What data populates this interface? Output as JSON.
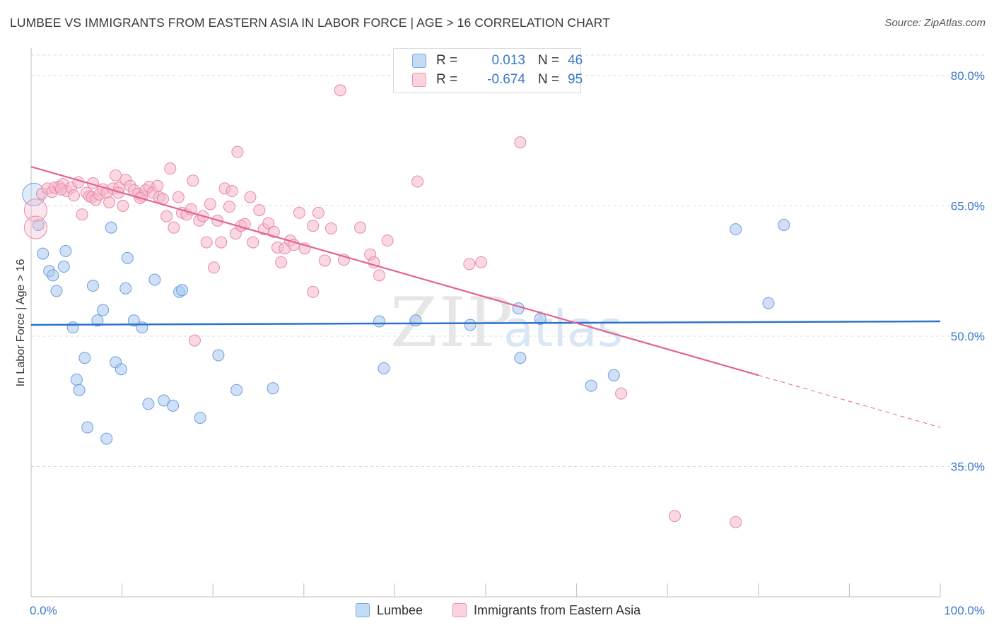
{
  "header": {
    "title": "LUMBEE VS IMMIGRANTS FROM EASTERN ASIA IN LABOR FORCE | AGE > 16 CORRELATION CHART",
    "source": "Source: ZipAtlas.com"
  },
  "legend": {
    "rows": [
      {
        "r_label": "R =",
        "r_value": "0.013",
        "n_label": "N =",
        "n_value": "46",
        "color": "#a9c8f0"
      },
      {
        "r_label": "R =",
        "r_value": "-0.674",
        "n_label": "N =",
        "n_value": "95",
        "color": "#f5b8cb"
      }
    ]
  },
  "bottom_legend": {
    "items": [
      {
        "label": "Lumbee",
        "color": "#a9c8f0"
      },
      {
        "label": "Immigrants from Eastern Asia",
        "color": "#f5b8cb"
      }
    ]
  },
  "chart_data": {
    "type": "scatter",
    "ylabel": "In Labor Force | Age > 16",
    "xlim": [
      0,
      100
    ],
    "ylim": [
      20,
      83
    ],
    "x_tick_labels": [
      {
        "value": 0,
        "label": "0.0%"
      },
      {
        "value": 100,
        "label": "100.0%"
      }
    ],
    "y_tick_labels": [
      {
        "value": 80,
        "label": "80.0%"
      },
      {
        "value": 65,
        "label": "65.0%"
      },
      {
        "value": 50,
        "label": "50.0%"
      },
      {
        "value": 35,
        "label": "35.0%"
      }
    ],
    "grid": true,
    "watermark": "ZIPatlas",
    "series": [
      {
        "name": "Lumbee",
        "color": "#a9c8f0",
        "stroke": "#6b9fdc",
        "trend": {
          "x0": 0,
          "y0": 51.3,
          "x1": 100,
          "y1": 51.7,
          "color": "#2f72c9",
          "dashed_from": null
        },
        "points": [
          [
            0.3,
            66.3
          ],
          [
            0.8,
            62.8
          ],
          [
            1.3,
            59.5
          ],
          [
            2.0,
            57.5
          ],
          [
            2.4,
            57.0
          ],
          [
            2.8,
            55.2
          ],
          [
            3.6,
            58.0
          ],
          [
            3.8,
            59.8
          ],
          [
            4.6,
            51.0
          ],
          [
            5.0,
            45.0
          ],
          [
            5.3,
            43.8
          ],
          [
            5.9,
            47.5
          ],
          [
            6.2,
            39.5
          ],
          [
            6.8,
            55.8
          ],
          [
            7.3,
            51.8
          ],
          [
            7.9,
            53.0
          ],
          [
            8.3,
            38.2
          ],
          [
            8.8,
            62.5
          ],
          [
            9.3,
            47.0
          ],
          [
            9.9,
            46.2
          ],
          [
            10.4,
            55.5
          ],
          [
            10.6,
            59.0
          ],
          [
            11.3,
            51.8
          ],
          [
            12.2,
            51.0
          ],
          [
            12.9,
            42.2
          ],
          [
            13.6,
            56.5
          ],
          [
            14.6,
            42.6
          ],
          [
            15.6,
            42.0
          ],
          [
            16.3,
            55.1
          ],
          [
            16.6,
            55.3
          ],
          [
            18.6,
            40.6
          ],
          [
            20.6,
            47.8
          ],
          [
            22.6,
            43.8
          ],
          [
            26.6,
            44.0
          ],
          [
            38.3,
            51.7
          ],
          [
            38.8,
            46.3
          ],
          [
            42.3,
            51.8
          ],
          [
            48.3,
            51.3
          ],
          [
            53.6,
            53.2
          ],
          [
            53.8,
            47.5
          ],
          [
            56.0,
            52.0
          ],
          [
            77.5,
            62.3
          ],
          [
            82.8,
            62.8
          ],
          [
            61.6,
            44.3
          ],
          [
            64.1,
            45.5
          ],
          [
            81.1,
            53.8
          ]
        ]
      },
      {
        "name": "Immigrants from Eastern Asia",
        "color": "#f5b8cb",
        "stroke": "#e889a7",
        "trend": {
          "x0": 0,
          "y0": 69.5,
          "x1": 100,
          "y1": 39.5,
          "color": "#e2648f",
          "dashed_from": 80
        },
        "points": [
          [
            0.5,
            64.5
          ],
          [
            0.5,
            62.5
          ],
          [
            1.2,
            66.4
          ],
          [
            1.8,
            67.0
          ],
          [
            2.3,
            66.6
          ],
          [
            2.6,
            67.1
          ],
          [
            3.1,
            67.2
          ],
          [
            3.5,
            67.5
          ],
          [
            3.9,
            66.7
          ],
          [
            4.4,
            67.1
          ],
          [
            4.7,
            66.2
          ],
          [
            5.2,
            67.7
          ],
          [
            5.6,
            64.0
          ],
          [
            6.1,
            66.5
          ],
          [
            6.4,
            66.1
          ],
          [
            6.7,
            66.0
          ],
          [
            7.1,
            65.7
          ],
          [
            7.5,
            66.3
          ],
          [
            7.9,
            66.9
          ],
          [
            8.3,
            66.5
          ],
          [
            8.6,
            65.4
          ],
          [
            9.0,
            67.0
          ],
          [
            9.3,
            68.5
          ],
          [
            9.7,
            67.1
          ],
          [
            10.1,
            65.0
          ],
          [
            10.4,
            68.0
          ],
          [
            10.9,
            67.3
          ],
          [
            11.3,
            66.8
          ],
          [
            11.8,
            66.4
          ],
          [
            12.2,
            66.1
          ],
          [
            12.6,
            66.8
          ],
          [
            13.0,
            67.2
          ],
          [
            13.4,
            66.5
          ],
          [
            13.9,
            67.3
          ],
          [
            14.1,
            66.0
          ],
          [
            14.5,
            65.8
          ],
          [
            14.9,
            63.8
          ],
          [
            15.3,
            69.3
          ],
          [
            15.7,
            62.5
          ],
          [
            16.2,
            66.0
          ],
          [
            16.6,
            64.2
          ],
          [
            17.1,
            64.0
          ],
          [
            17.6,
            64.6
          ],
          [
            17.8,
            67.9
          ],
          [
            18.5,
            63.3
          ],
          [
            18.9,
            63.8
          ],
          [
            19.3,
            60.8
          ],
          [
            19.7,
            65.2
          ],
          [
            20.1,
            57.9
          ],
          [
            20.5,
            63.3
          ],
          [
            20.9,
            60.8
          ],
          [
            21.3,
            67.0
          ],
          [
            21.8,
            64.9
          ],
          [
            22.1,
            66.7
          ],
          [
            22.5,
            61.8
          ],
          [
            22.7,
            71.2
          ],
          [
            23.1,
            62.7
          ],
          [
            23.5,
            62.9
          ],
          [
            24.1,
            66.0
          ],
          [
            24.4,
            60.8
          ],
          [
            25.1,
            64.5
          ],
          [
            25.6,
            62.3
          ],
          [
            26.1,
            63.0
          ],
          [
            26.7,
            62.0
          ],
          [
            27.1,
            60.2
          ],
          [
            27.5,
            58.5
          ],
          [
            27.9,
            60.1
          ],
          [
            28.5,
            61.0
          ],
          [
            28.9,
            60.5
          ],
          [
            29.5,
            64.2
          ],
          [
            30.1,
            60.1
          ],
          [
            31.0,
            62.7
          ],
          [
            31.6,
            64.2
          ],
          [
            32.3,
            58.7
          ],
          [
            33.0,
            62.4
          ],
          [
            34.4,
            58.8
          ],
          [
            36.2,
            62.5
          ],
          [
            37.3,
            59.4
          ],
          [
            37.7,
            58.5
          ],
          [
            38.3,
            57.0
          ],
          [
            39.2,
            61.0
          ],
          [
            42.5,
            67.8
          ],
          [
            48.2,
            58.3
          ],
          [
            49.5,
            58.5
          ],
          [
            53.8,
            72.3
          ],
          [
            34.0,
            78.3
          ],
          [
            31.0,
            55.1
          ],
          [
            18.0,
            49.5
          ],
          [
            64.9,
            43.4
          ],
          [
            70.8,
            29.3
          ],
          [
            77.5,
            28.6
          ],
          [
            9.6,
            66.5
          ],
          [
            12.0,
            65.9
          ],
          [
            3.3,
            66.9
          ],
          [
            6.8,
            67.6
          ]
        ]
      }
    ]
  }
}
